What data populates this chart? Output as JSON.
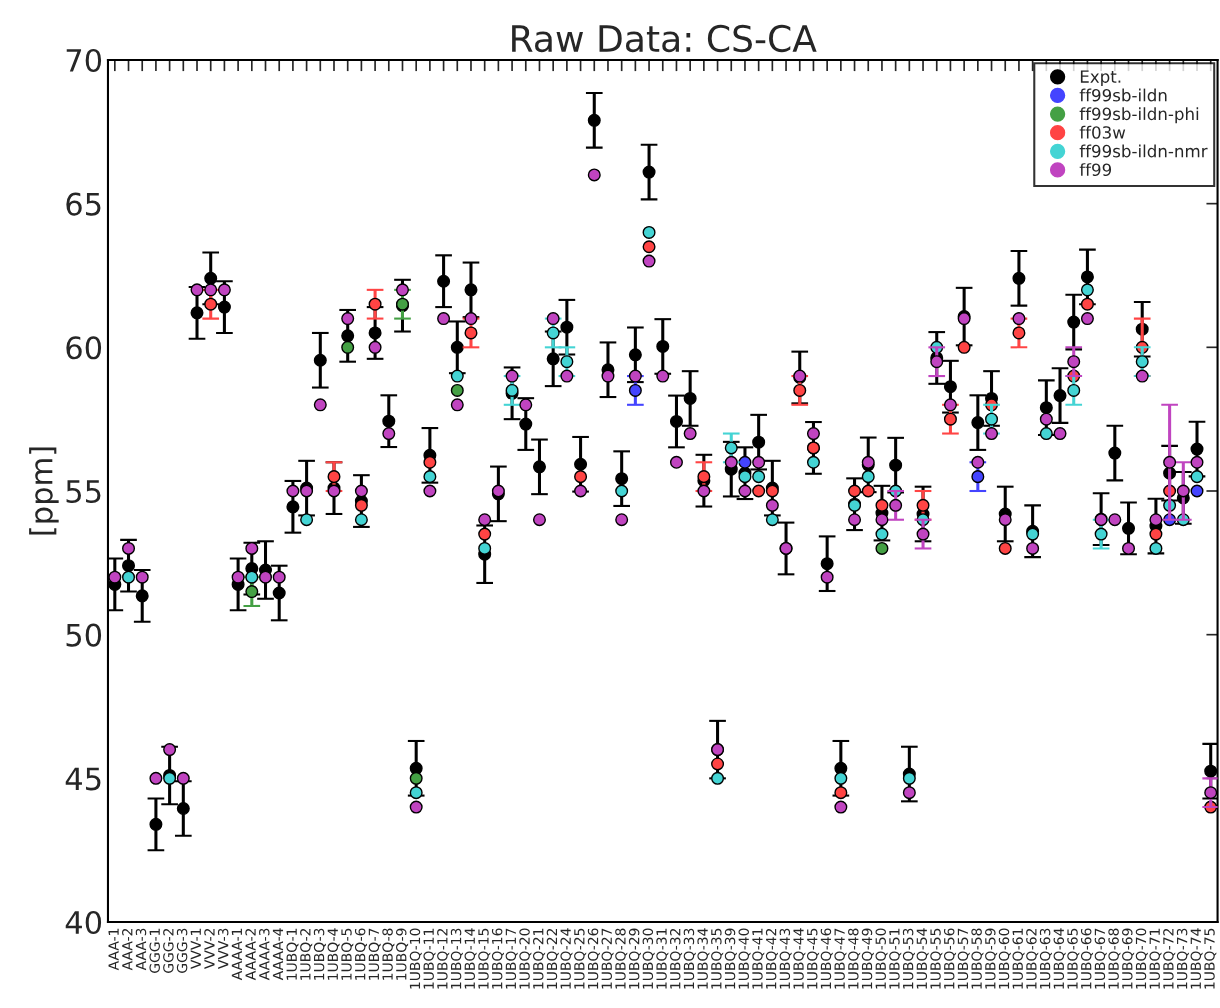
{
  "chart_data": {
    "type": "scatter",
    "title": "Raw Data: CS-CA",
    "ylabel": "[ppm]",
    "categories": [
      "AAA-1",
      "AAA-2",
      "AAA-3",
      "GGG-1",
      "GGG-2",
      "GGG-3",
      "VVV-1",
      "VVV-2",
      "VVV-3",
      "AAAA-1",
      "AAAA-2",
      "AAAA-3",
      "AAAA-4",
      "1UBQ-1",
      "1UBQ-2",
      "1UBQ-3",
      "1UBQ-4",
      "1UBQ-5",
      "1UBQ-6",
      "1UBQ-7",
      "1UBQ-8",
      "1UBQ-9",
      "1UBQ-10",
      "1UBQ-11",
      "1UBQ-12",
      "1UBQ-13",
      "1UBQ-14",
      "1UBQ-15",
      "1UBQ-16",
      "1UBQ-17",
      "1UBQ-20",
      "1UBQ-21",
      "1UBQ-22",
      "1UBQ-24",
      "1UBQ-25",
      "1UBQ-26",
      "1UBQ-27",
      "1UBQ-28",
      "1UBQ-29",
      "1UBQ-30",
      "1UBQ-31",
      "1UBQ-32",
      "1UBQ-33",
      "1UBQ-34",
      "1UBQ-35",
      "1UBQ-39",
      "1UBQ-40",
      "1UBQ-41",
      "1UBQ-42",
      "1UBQ-43",
      "1UBQ-44",
      "1UBQ-45",
      "1UBQ-46",
      "1UBQ-47",
      "1UBQ-48",
      "1UBQ-49",
      "1UBQ-50",
      "1UBQ-51",
      "1UBQ-53",
      "1UBQ-54",
      "1UBQ-55",
      "1UBQ-56",
      "1UBQ-57",
      "1UBQ-58",
      "1UBQ-59",
      "1UBQ-60",
      "1UBQ-61",
      "1UBQ-62",
      "1UBQ-63",
      "1UBQ-64",
      "1UBQ-65",
      "1UBQ-66",
      "1UBQ-67",
      "1UBQ-68",
      "1UBQ-69",
      "1UBQ-70",
      "1UBQ-71",
      "1UBQ-72",
      "1UBQ-73",
      "1UBQ-74",
      "1UBQ-75"
    ],
    "ylim": [
      40,
      70
    ],
    "yticks": [
      40,
      45,
      50,
      55,
      60,
      65,
      70
    ],
    "grid": false,
    "legend": "top right",
    "marker": "circle",
    "series": [
      {
        "name": "Expt.",
        "color": "#000000",
        "values": [
          51.75,
          52.4,
          51.35,
          43.4,
          45.1,
          43.95,
          61.2,
          62.4,
          61.4,
          51.75,
          52.3,
          52.25,
          51.45,
          54.45,
          55.1,
          59.55,
          55.1,
          60.4,
          54.65,
          60.5,
          57.43,
          61.45,
          45.35,
          56.24,
          62.3,
          60.0,
          62.0,
          52.8,
          54.9,
          58.4,
          57.33,
          55.84,
          59.6,
          60.7,
          55.93,
          67.9,
          59.22,
          55.43,
          59.74,
          66.1,
          60.03,
          57.42,
          58.22,
          55.36,
          46.0,
          55.76,
          55.62,
          56.7,
          55.1,
          53.0,
          58.95,
          56.5,
          52.47,
          45.35,
          54.54,
          55.91,
          54.23,
          55.9,
          45.15,
          54.2,
          59.63,
          58.63,
          61.07,
          57.38,
          58.22,
          54.2,
          62.4,
          53.6,
          57.9,
          58.32,
          60.88,
          62.45,
          54.02,
          56.32,
          53.7,
          60.63,
          53.78,
          55.62,
          54.76,
          56.46,
          45.25
        ],
        "errors": [
          0.9,
          0.9,
          0.9,
          0.9,
          1.0,
          0.95,
          0.9,
          0.9,
          0.9,
          0.9,
          0.9,
          1.0,
          0.95,
          0.9,
          0.95,
          0.95,
          0.9,
          0.9,
          0.9,
          0.9,
          0.9,
          0.9,
          0.95,
          0.95,
          0.9,
          0.9,
          0.95,
          1.0,
          0.95,
          0.9,
          0.9,
          0.95,
          0.95,
          0.95,
          0.95,
          0.95,
          0.95,
          0.95,
          0.95,
          0.95,
          0.95,
          0.9,
          0.95,
          0.9,
          1.0,
          0.95,
          0.9,
          0.95,
          0.95,
          0.9,
          0.9,
          0.9,
          0.95,
          0.95,
          0.9,
          0.95,
          0.95,
          0.95,
          0.95,
          0.95,
          0.9,
          0.9,
          1.0,
          0.95,
          0.95,
          0.95,
          0.95,
          0.9,
          0.95,
          0.95,
          0.95,
          0.95,
          0.9,
          0.95,
          0.9,
          0.95,
          0.95,
          0.95,
          0.9,
          0.95,
          0.95
        ]
      },
      {
        "name": "ff99sb-ildn",
        "color": "#4444ff",
        "values": [
          null,
          null,
          null,
          null,
          null,
          null,
          null,
          null,
          null,
          null,
          null,
          null,
          null,
          null,
          null,
          null,
          null,
          null,
          null,
          null,
          null,
          null,
          null,
          null,
          null,
          null,
          null,
          null,
          null,
          null,
          null,
          null,
          null,
          null,
          null,
          null,
          null,
          null,
          58.5,
          null,
          null,
          null,
          null,
          null,
          null,
          null,
          56,
          null,
          null,
          null,
          null,
          null,
          null,
          null,
          null,
          null,
          null,
          null,
          null,
          null,
          null,
          null,
          null,
          55.5,
          null,
          null,
          null,
          null,
          null,
          null,
          null,
          null,
          null,
          null,
          null,
          null,
          null,
          54,
          null,
          55,
          null
        ],
        "errors": [
          null,
          null,
          null,
          null,
          null,
          null,
          null,
          null,
          null,
          null,
          null,
          null,
          null,
          null,
          null,
          null,
          null,
          null,
          null,
          null,
          null,
          null,
          null,
          null,
          null,
          null,
          null,
          null,
          null,
          null,
          null,
          null,
          null,
          null,
          null,
          null,
          null,
          null,
          0.5,
          null,
          null,
          null,
          null,
          null,
          null,
          null,
          null,
          null,
          null,
          null,
          null,
          null,
          null,
          null,
          null,
          null,
          null,
          null,
          null,
          null,
          null,
          null,
          null,
          0.5,
          null,
          null,
          null,
          null,
          null,
          null,
          null,
          null,
          null,
          null,
          null,
          null,
          null,
          null,
          null,
          null,
          null
        ]
      },
      {
        "name": "ff99sb-ildn-phi",
        "color": "#44a044",
        "values": [
          null,
          null,
          null,
          null,
          null,
          null,
          null,
          null,
          null,
          null,
          51.5,
          null,
          null,
          null,
          null,
          null,
          null,
          60,
          null,
          null,
          null,
          61.5,
          45,
          null,
          null,
          58.5,
          null,
          null,
          null,
          null,
          null,
          null,
          null,
          null,
          null,
          null,
          null,
          null,
          null,
          null,
          null,
          null,
          null,
          null,
          null,
          null,
          null,
          null,
          null,
          null,
          null,
          null,
          null,
          null,
          null,
          null,
          53,
          null,
          null,
          null,
          null,
          null,
          null,
          null,
          null,
          null,
          null,
          null,
          null,
          null,
          null,
          null,
          null,
          null,
          null,
          null,
          null,
          null,
          null,
          null,
          null
        ],
        "errors": [
          null,
          null,
          null,
          null,
          null,
          null,
          null,
          null,
          null,
          null,
          0.5,
          null,
          null,
          null,
          null,
          null,
          null,
          null,
          null,
          null,
          null,
          0.5,
          null,
          null,
          null,
          null,
          null,
          null,
          null,
          null,
          null,
          null,
          null,
          null,
          null,
          null,
          null,
          null,
          null,
          null,
          null,
          null,
          null,
          null,
          null,
          null,
          null,
          null,
          null,
          null,
          null,
          null,
          null,
          null,
          null,
          null,
          null,
          null,
          null,
          null,
          null,
          null,
          null,
          null,
          null,
          null,
          null,
          null,
          null,
          null,
          null,
          null,
          null,
          null,
          null,
          null,
          null,
          null,
          null,
          null,
          null
        ]
      },
      {
        "name": "ff03w",
        "color": "#ff4444",
        "values": [
          null,
          null,
          null,
          null,
          null,
          null,
          null,
          61.5,
          null,
          null,
          null,
          null,
          null,
          null,
          null,
          null,
          55.5,
          null,
          54.5,
          61.5,
          null,
          null,
          null,
          56,
          null,
          null,
          60.5,
          53.5,
          null,
          null,
          null,
          null,
          null,
          null,
          55.5,
          null,
          null,
          null,
          null,
          63.5,
          null,
          null,
          null,
          55.5,
          45.5,
          null,
          null,
          55,
          55,
          null,
          58.5,
          56.5,
          null,
          44.5,
          55,
          55,
          54.5,
          null,
          null,
          54.5,
          null,
          57.5,
          60,
          null,
          58,
          53,
          60.5,
          null,
          null,
          null,
          59,
          61.5,
          null,
          null,
          null,
          60,
          53.5,
          55,
          null,
          null,
          44
        ],
        "errors": [
          null,
          null,
          null,
          null,
          null,
          null,
          null,
          0.5,
          null,
          null,
          null,
          null,
          null,
          null,
          null,
          null,
          0.5,
          null,
          null,
          0.5,
          null,
          null,
          null,
          null,
          null,
          null,
          0.5,
          null,
          null,
          null,
          null,
          null,
          null,
          null,
          null,
          null,
          null,
          null,
          null,
          null,
          null,
          null,
          null,
          0.5,
          null,
          null,
          null,
          null,
          null,
          null,
          0.5,
          null,
          null,
          null,
          null,
          null,
          null,
          null,
          null,
          0.5,
          null,
          0.5,
          null,
          null,
          null,
          null,
          0.5,
          null,
          null,
          null,
          null,
          null,
          null,
          null,
          null,
          1,
          null,
          null,
          null,
          null,
          null
        ]
      },
      {
        "name": "ff99sb-ildn-nmr",
        "color": "#44d4d4",
        "values": [
          null,
          52,
          null,
          null,
          45,
          null,
          null,
          null,
          null,
          null,
          52,
          null,
          null,
          null,
          54,
          null,
          null,
          null,
          54,
          null,
          null,
          null,
          44.5,
          55.5,
          null,
          59,
          null,
          53,
          null,
          58.5,
          null,
          null,
          60.5,
          59.5,
          null,
          null,
          null,
          55,
          null,
          64,
          null,
          null,
          null,
          null,
          45,
          56.5,
          55.5,
          55.5,
          54,
          null,
          null,
          56,
          null,
          45,
          54.5,
          55.5,
          53.5,
          55,
          45,
          54,
          60,
          null,
          null,
          null,
          57.5,
          null,
          null,
          53.5,
          57,
          null,
          58.5,
          62,
          53.5,
          null,
          null,
          59.5,
          53,
          54.5,
          54,
          55.5,
          null
        ],
        "errors": [
          null,
          null,
          null,
          null,
          null,
          null,
          null,
          null,
          null,
          null,
          null,
          null,
          null,
          null,
          null,
          null,
          null,
          null,
          null,
          null,
          null,
          null,
          null,
          null,
          null,
          null,
          null,
          null,
          null,
          0.5,
          null,
          null,
          0.5,
          0.5,
          null,
          null,
          null,
          null,
          null,
          null,
          null,
          null,
          null,
          null,
          null,
          0.5,
          null,
          null,
          null,
          null,
          null,
          null,
          null,
          null,
          null,
          null,
          null,
          null,
          null,
          null,
          null,
          null,
          null,
          null,
          0.5,
          null,
          null,
          null,
          null,
          null,
          0.5,
          null,
          0.5,
          null,
          null,
          0.5,
          null,
          null,
          null,
          null,
          null
        ]
      },
      {
        "name": "ff99",
        "color": "#c044c0",
        "values": [
          52,
          53,
          52,
          45,
          46,
          45,
          62,
          62,
          62,
          52,
          53,
          52,
          52,
          55,
          55,
          58,
          55,
          61,
          55,
          60,
          57,
          62,
          44,
          55,
          61,
          58,
          61,
          54,
          55,
          59,
          58,
          54,
          61,
          59,
          55,
          66,
          59,
          54,
          59,
          63,
          59,
          56,
          57,
          55,
          46,
          56,
          55,
          56,
          54.5,
          53,
          59,
          57,
          52,
          44,
          54,
          56,
          54,
          54.5,
          44.5,
          53.5,
          59.5,
          58,
          61,
          56,
          57,
          54,
          61,
          53,
          57.5,
          57,
          59.5,
          61,
          54,
          54,
          53,
          59,
          54,
          56,
          55,
          56,
          44.5
        ],
        "errors": [
          null,
          null,
          null,
          null,
          null,
          null,
          null,
          null,
          null,
          null,
          null,
          null,
          null,
          null,
          null,
          null,
          null,
          null,
          null,
          null,
          null,
          null,
          null,
          null,
          null,
          null,
          null,
          null,
          null,
          null,
          null,
          null,
          null,
          null,
          null,
          null,
          null,
          null,
          null,
          null,
          null,
          null,
          null,
          null,
          null,
          null,
          null,
          null,
          null,
          null,
          null,
          null,
          null,
          null,
          null,
          null,
          null,
          0.5,
          null,
          0.5,
          0.5,
          null,
          null,
          null,
          null,
          null,
          null,
          null,
          null,
          null,
          0.5,
          null,
          null,
          null,
          null,
          null,
          null,
          2,
          1,
          null,
          0.5
        ]
      }
    ]
  }
}
